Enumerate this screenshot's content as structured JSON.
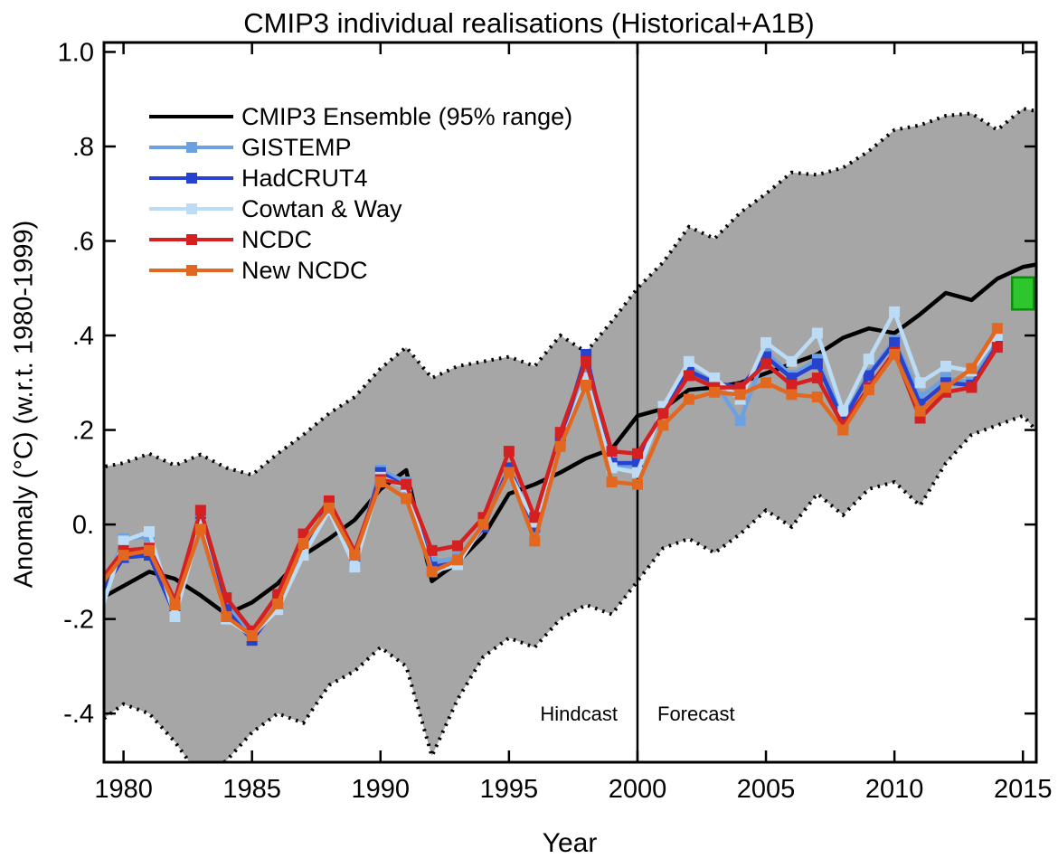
{
  "page": {
    "background": "#ffffff"
  },
  "chart_data": {
    "type": "line",
    "title": "CMIP3 individual realisations (Historical+A1B)",
    "xlabel": "Year",
    "ylabel": "Anomaly (°C) (w.r.t. 1980-1999)",
    "xlim": [
      1979.24,
      2015.52
    ],
    "ylim": [
      -0.503,
      1.02
    ],
    "grid": false,
    "x_ticks": [
      1980,
      1985,
      1990,
      1995,
      2000,
      2005,
      2010,
      2015
    ],
    "x_tick_labels": [
      "1980",
      "1985",
      "1990",
      "1995",
      "2000",
      "2005",
      "2010",
      "2015"
    ],
    "y_ticks": [
      1.0,
      0.8,
      0.6,
      0.4,
      0.2,
      0.0,
      -0.2,
      -0.4
    ],
    "y_tick_labels": [
      "1.0",
      ".8",
      ".6",
      ".4",
      ".2",
      "0.",
      "-.2",
      "-.4"
    ],
    "divider": {
      "year": 2000,
      "left_label": "Hindcast",
      "right_label": "Forecast"
    },
    "band": {
      "name": "CMIP3 Ensemble 95% range",
      "fill": "#a6a6a6",
      "edge_color": "#000000",
      "edge_style": "dotted",
      "years": [
        1979,
        1980,
        1981,
        1982,
        1983,
        1984,
        1985,
        1986,
        1987,
        1988,
        1989,
        1990,
        1991,
        1992,
        1993,
        1994,
        1995,
        1996,
        1997,
        1998,
        1999,
        2000,
        2001,
        2002,
        2003,
        2004,
        2005,
        2006,
        2007,
        2008,
        2009,
        2010,
        2011,
        2012,
        2013,
        2014,
        2015,
        2015.5
      ],
      "upper": [
        0.12,
        0.13,
        0.15,
        0.125,
        0.148,
        0.12,
        0.105,
        0.15,
        0.19,
        0.235,
        0.27,
        0.33,
        0.375,
        0.31,
        0.335,
        0.345,
        0.355,
        0.335,
        0.4,
        0.365,
        0.43,
        0.5,
        0.555,
        0.63,
        0.605,
        0.66,
        0.7,
        0.745,
        0.74,
        0.755,
        0.79,
        0.835,
        0.845,
        0.865,
        0.87,
        0.835,
        0.88,
        0.875
      ],
      "lower": [
        -0.42,
        -0.38,
        -0.4,
        -0.46,
        -0.535,
        -0.5,
        -0.44,
        -0.4,
        -0.42,
        -0.34,
        -0.31,
        -0.26,
        -0.3,
        -0.49,
        -0.37,
        -0.28,
        -0.24,
        -0.26,
        -0.2,
        -0.17,
        -0.19,
        -0.12,
        -0.05,
        -0.03,
        -0.06,
        -0.02,
        0.03,
        -0.005,
        0.065,
        0.02,
        0.075,
        0.09,
        0.04,
        0.13,
        0.19,
        0.21,
        0.23,
        0.2
      ]
    },
    "ensemble_mean": {
      "name": "CMIP3 Ensemble mean",
      "color": "#000000",
      "years": [
        1979,
        1980,
        1981,
        1982,
        1983,
        1984,
        1985,
        1986,
        1987,
        1988,
        1989,
        1990,
        1991,
        1992,
        1993,
        1994,
        1995,
        1996,
        1997,
        1998,
        1999,
        2000,
        2001,
        2002,
        2003,
        2004,
        2005,
        2006,
        2007,
        2008,
        2009,
        2010,
        2011,
        2012,
        2013,
        2014,
        2015,
        2015.5
      ],
      "values": [
        -0.16,
        -0.13,
        -0.1,
        -0.115,
        -0.15,
        -0.19,
        -0.165,
        -0.125,
        -0.065,
        -0.03,
        0.01,
        0.075,
        0.115,
        -0.12,
        -0.08,
        -0.025,
        0.065,
        0.085,
        0.11,
        0.14,
        0.16,
        0.23,
        0.245,
        0.285,
        0.29,
        0.3,
        0.32,
        0.34,
        0.36,
        0.395,
        0.415,
        0.405,
        0.445,
        0.49,
        0.475,
        0.52,
        0.545,
        0.55
      ]
    },
    "observations": {
      "years": [
        1979,
        1980,
        1981,
        1982,
        1983,
        1984,
        1985,
        1986,
        1987,
        1988,
        1989,
        1990,
        1991,
        1992,
        1993,
        1994,
        1995,
        1996,
        1997,
        1998,
        1999,
        2000,
        2001,
        2002,
        2003,
        2004,
        2005,
        2006,
        2007,
        2008,
        2009,
        2010,
        2011,
        2012,
        2013,
        2014
      ],
      "series": [
        {
          "name": "GISTEMP",
          "color": "#6ba1e1",
          "values": [
            -0.18,
            -0.03,
            -0.025,
            -0.18,
            0.01,
            -0.17,
            -0.23,
            -0.16,
            -0.05,
            0.04,
            -0.075,
            0.115,
            0.09,
            -0.08,
            -0.07,
            -0.005,
            0.115,
            -0.01,
            0.17,
            0.33,
            0.125,
            0.125,
            0.24,
            0.33,
            0.3,
            0.22,
            0.365,
            0.315,
            0.35,
            0.225,
            0.32,
            0.39,
            0.27,
            0.31,
            0.3,
            0.39
          ]
        },
        {
          "name": "HadCRUT4",
          "color": "#2742ce",
          "values": [
            -0.155,
            -0.07,
            -0.065,
            -0.19,
            0.005,
            -0.18,
            -0.245,
            -0.17,
            -0.06,
            0.045,
            -0.08,
            0.11,
            0.08,
            -0.09,
            -0.08,
            -0.005,
            0.12,
            -0.005,
            0.175,
            0.36,
            0.13,
            0.13,
            0.245,
            0.325,
            0.3,
            0.29,
            0.355,
            0.31,
            0.34,
            0.22,
            0.315,
            0.385,
            0.255,
            0.3,
            0.295,
            0.38
          ]
        },
        {
          "name": "Cowtan & Way",
          "color": "#bcdcf5",
          "values": [
            -0.205,
            -0.035,
            -0.015,
            -0.195,
            0.0,
            -0.2,
            -0.235,
            -0.18,
            -0.065,
            0.03,
            -0.09,
            0.1,
            0.08,
            -0.1,
            -0.085,
            0.0,
            0.11,
            0.005,
            0.165,
            0.31,
            0.12,
            0.11,
            0.25,
            0.345,
            0.31,
            0.265,
            0.385,
            0.345,
            0.405,
            0.24,
            0.35,
            0.45,
            0.3,
            0.335,
            0.325,
            0.4
          ]
        },
        {
          "name": "NCDC",
          "color": "#d42020",
          "values": [
            -0.125,
            -0.055,
            -0.05,
            -0.16,
            0.03,
            -0.155,
            -0.225,
            -0.148,
            -0.02,
            0.05,
            -0.058,
            0.095,
            0.085,
            -0.055,
            -0.045,
            0.015,
            0.155,
            0.015,
            0.195,
            0.345,
            0.155,
            0.15,
            0.235,
            0.315,
            0.29,
            0.29,
            0.34,
            0.295,
            0.31,
            0.21,
            0.29,
            0.365,
            0.225,
            0.28,
            0.29,
            0.375
          ]
        },
        {
          "name": "New NCDC",
          "color": "#e2671f",
          "values": [
            -0.135,
            -0.065,
            -0.055,
            -0.17,
            -0.01,
            -0.195,
            -0.235,
            -0.168,
            -0.04,
            0.035,
            -0.065,
            0.09,
            0.055,
            -0.1,
            -0.075,
            0.0,
            0.11,
            -0.035,
            0.165,
            0.295,
            0.09,
            0.085,
            0.21,
            0.265,
            0.28,
            0.275,
            0.3,
            0.275,
            0.27,
            0.2,
            0.285,
            0.36,
            0.24,
            0.29,
            0.33,
            0.415
          ]
        }
      ]
    },
    "green_box": {
      "year": 2015,
      "value_low": 0.455,
      "value_high": 0.523,
      "fill": "#2dc72d",
      "stroke": "#128a12"
    },
    "legend": {
      "position": "top-left",
      "entries": [
        {
          "label": "CMIP3 Ensemble (95% range)",
          "color": "#000000",
          "marker": false
        },
        {
          "label": "GISTEMP",
          "color": "#6ba1e1",
          "marker": true
        },
        {
          "label": "HadCRUT4",
          "color": "#2742ce",
          "marker": true
        },
        {
          "label": "Cowtan & Way",
          "color": "#bcdcf5",
          "marker": true
        },
        {
          "label": "NCDC",
          "color": "#d42020",
          "marker": true
        },
        {
          "label": "New NCDC",
          "color": "#e2671f",
          "marker": true
        }
      ]
    }
  }
}
